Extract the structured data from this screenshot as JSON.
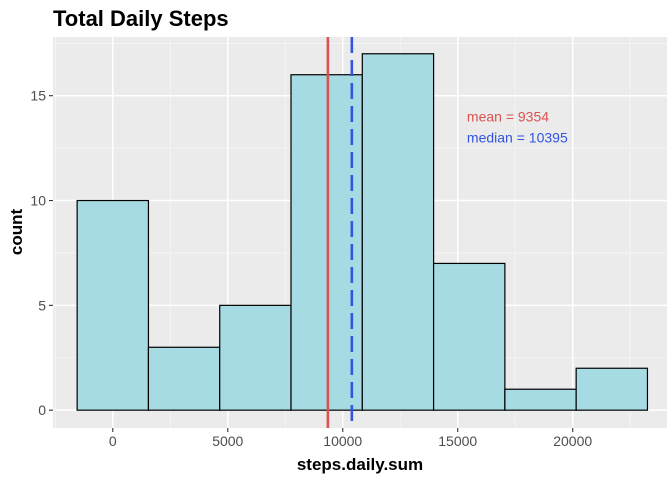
{
  "chart_data": {
    "type": "histogram",
    "title": "Total Daily Steps",
    "xlabel": "steps.daily.sum",
    "ylabel": "count",
    "xlim": [
      -2600,
      24100
    ],
    "ylim": [
      -0.85,
      17.8
    ],
    "x_ticks": [
      0,
      5000,
      10000,
      15000,
      20000
    ],
    "x_tick_labels": [
      "0",
      "5000",
      "10000",
      "15000",
      "20000"
    ],
    "y_ticks": [
      0,
      5,
      10,
      15
    ],
    "y_tick_labels": [
      "0",
      "5",
      "10",
      "15"
    ],
    "bins": [
      {
        "x0": -1550,
        "x1": 1550,
        "count": 10
      },
      {
        "x0": 1550,
        "x1": 4650,
        "count": 3
      },
      {
        "x0": 4650,
        "x1": 7750,
        "count": 5
      },
      {
        "x0": 7750,
        "x1": 10850,
        "count": 16
      },
      {
        "x0": 10850,
        "x1": 13950,
        "count": 17
      },
      {
        "x0": 13950,
        "x1": 17050,
        "count": 7
      },
      {
        "x0": 17050,
        "x1": 20150,
        "count": 1
      },
      {
        "x0": 20150,
        "x1": 23250,
        "count": 2
      }
    ],
    "bar_fill": "#a6dbe3",
    "bar_stroke": "#000000",
    "panel_background": "#ebebeb",
    "grid": true,
    "reference_lines": [
      {
        "value": 9354,
        "color": "#d9534f",
        "style": "solid"
      },
      {
        "value": 10395,
        "color": "#3355e0",
        "style": "dashed"
      }
    ],
    "annotations": [
      {
        "text": "mean = 9354",
        "color": "#d9534f",
        "x": 15400,
        "y": 14
      },
      {
        "text": "median = 10395",
        "color": "#3355e0",
        "x": 15400,
        "y": 13
      }
    ]
  }
}
